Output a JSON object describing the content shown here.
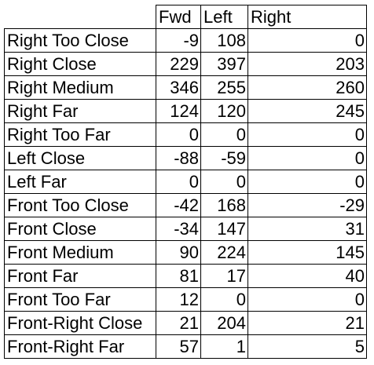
{
  "table": {
    "headers": [
      "Fwd",
      "Left",
      "Right"
    ],
    "rows": [
      {
        "label": "Right Too Close",
        "fwd": "-9",
        "left": "108",
        "right": "0"
      },
      {
        "label": "Right Close",
        "fwd": "229",
        "left": "397",
        "right": "203"
      },
      {
        "label": "Right Medium",
        "fwd": "346",
        "left": "255",
        "right": "260"
      },
      {
        "label": "Right Far",
        "fwd": "124",
        "left": "120",
        "right": "245"
      },
      {
        "label": "Right Too Far",
        "fwd": "0",
        "left": "0",
        "right": "0"
      },
      {
        "label": "Left Close",
        "fwd": "-88",
        "left": "-59",
        "right": "0"
      },
      {
        "label": "Left Far",
        "fwd": "0",
        "left": "0",
        "right": "0"
      },
      {
        "label": "Front Too Close",
        "fwd": "-42",
        "left": "168",
        "right": "-29"
      },
      {
        "label": "Front Close",
        "fwd": "-34",
        "left": "147",
        "right": "31"
      },
      {
        "label": "Front Medium",
        "fwd": "90",
        "left": "224",
        "right": "145"
      },
      {
        "label": "Front Far",
        "fwd": "81",
        "left": "17",
        "right": "40"
      },
      {
        "label": "Front Too Far",
        "fwd": "12",
        "left": "0",
        "right": "0"
      },
      {
        "label": "Front-Right Close",
        "fwd": "21",
        "left": "204",
        "right": "21"
      },
      {
        "label": "Front-Right Far",
        "fwd": "57",
        "left": "1",
        "right": "5"
      }
    ]
  }
}
